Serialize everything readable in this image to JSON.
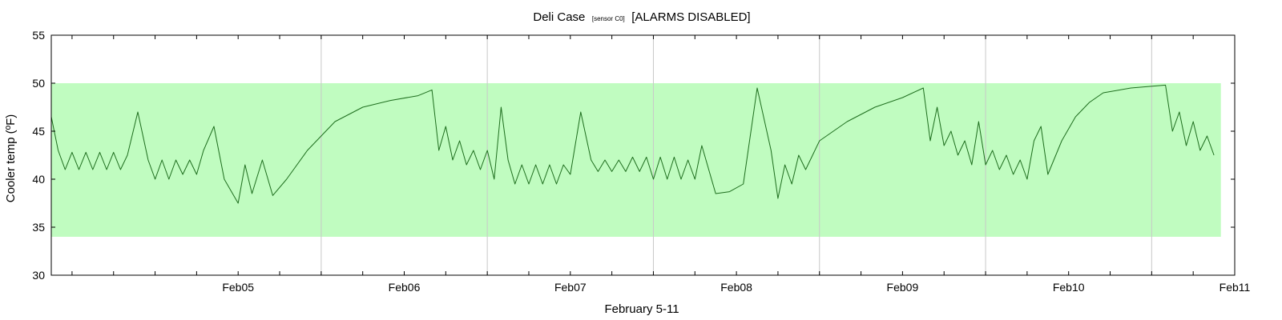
{
  "chart_data": {
    "type": "line",
    "title": "Deli Case",
    "title_sensor": "[sensor C0]",
    "title_status": "[ALARMS DISABLED]",
    "xlabel": "February  5-11",
    "ylabel": "Cooler temp (ºF)",
    "ylim": [
      30,
      55
    ],
    "y_ticks": [
      30,
      35,
      40,
      45,
      50,
      55
    ],
    "xlim": [
      "2024-02-04 09:00",
      "2024-02-11 12:00"
    ],
    "x_tick_labels": [
      {
        "date": "2024-02-05 12:00",
        "label": "Feb05"
      },
      {
        "date": "2024-02-06 12:00",
        "label": "Feb06"
      },
      {
        "date": "2024-02-07 12:00",
        "label": "Feb07"
      },
      {
        "date": "2024-02-08 12:00",
        "label": "Feb08"
      },
      {
        "date": "2024-02-09 12:00",
        "label": "Feb09"
      },
      {
        "date": "2024-02-10 12:00",
        "label": "Feb10"
      },
      {
        "date": "2024-02-11 12:00",
        "label": "Feb11"
      }
    ],
    "day_boundaries": [
      "2024-02-06 00:00",
      "2024-02-07 00:00",
      "2024-02-08 00:00",
      "2024-02-09 00:00",
      "2024-02-10 00:00",
      "2024-02-11 00:00"
    ],
    "acceptable_band": {
      "low": 34,
      "high": 50,
      "x_end": "2024-02-11 10:00",
      "color": "#c0fcc0"
    },
    "grid": "vertical lines at day boundaries",
    "colors": {
      "line": "#1e6e1e",
      "alarm_marker": "#e8298a",
      "grid": "#c8c8c8"
    },
    "series": [
      {
        "color": "#1e6e1e",
        "points": [
          [
            "2024-02-04 09:00",
            46.5
          ],
          [
            "2024-02-04 10:00",
            43
          ],
          [
            "2024-02-04 11:00",
            41
          ],
          [
            "2024-02-04 12:00",
            42.8
          ],
          [
            "2024-02-04 13:00",
            41
          ],
          [
            "2024-02-04 14:00",
            42.8
          ],
          [
            "2024-02-04 15:00",
            41
          ],
          [
            "2024-02-04 16:00",
            42.8
          ],
          [
            "2024-02-04 17:00",
            41
          ],
          [
            "2024-02-04 18:00",
            42.8
          ],
          [
            "2024-02-04 19:00",
            41
          ],
          [
            "2024-02-04 20:00",
            42.5
          ],
          [
            "2024-02-04 21:30",
            47
          ],
          [
            "2024-02-04 23:00",
            42
          ],
          [
            "2024-02-05 00:00",
            40
          ],
          [
            "2024-02-05 01:00",
            42
          ],
          [
            "2024-02-05 02:00",
            40
          ],
          [
            "2024-02-05 03:00",
            42
          ],
          [
            "2024-02-05 04:00",
            40.5
          ],
          [
            "2024-02-05 05:00",
            42
          ],
          [
            "2024-02-05 06:00",
            40.5
          ],
          [
            "2024-02-05 07:00",
            43
          ],
          [
            "2024-02-05 08:30",
            45.5
          ],
          [
            "2024-02-05 10:00",
            40
          ],
          [
            "2024-02-05 12:00",
            37.5
          ],
          [
            "2024-02-05 13:00",
            41.5
          ],
          [
            "2024-02-05 14:00",
            38.5
          ],
          [
            "2024-02-05 15:30",
            42
          ],
          [
            "2024-02-05 17:00",
            38.3
          ],
          [
            "2024-02-05 19:00",
            40
          ],
          [
            "2024-02-05 22:00",
            43
          ],
          [
            "2024-02-06 02:00",
            46
          ],
          [
            "2024-02-06 06:00",
            47.5
          ],
          [
            "2024-02-06 10:00",
            48.2
          ],
          [
            "2024-02-06 14:00",
            48.7
          ],
          [
            "2024-02-06 16:00",
            49.3
          ],
          [
            "2024-02-06 17:00",
            43
          ],
          [
            "2024-02-06 18:00",
            45.5
          ],
          [
            "2024-02-06 19:00",
            42
          ],
          [
            "2024-02-06 20:00",
            44
          ],
          [
            "2024-02-06 21:00",
            41.5
          ],
          [
            "2024-02-06 22:00",
            43
          ],
          [
            "2024-02-06 23:00",
            41
          ],
          [
            "2024-02-07 00:00",
            43
          ],
          [
            "2024-02-07 01:00",
            40
          ],
          [
            "2024-02-07 02:00",
            47.5
          ],
          [
            "2024-02-07 03:00",
            42
          ],
          [
            "2024-02-07 04:00",
            39.5
          ],
          [
            "2024-02-07 05:00",
            41.5
          ],
          [
            "2024-02-07 06:00",
            39.5
          ],
          [
            "2024-02-07 07:00",
            41.5
          ],
          [
            "2024-02-07 08:00",
            39.5
          ],
          [
            "2024-02-07 09:00",
            41.5
          ],
          [
            "2024-02-07 10:00",
            39.5
          ],
          [
            "2024-02-07 11:00",
            41.5
          ],
          [
            "2024-02-07 12:00",
            40.5
          ],
          [
            "2024-02-07 13:30",
            47
          ],
          [
            "2024-02-07 15:00",
            42
          ],
          [
            "2024-02-07 16:00",
            40.8
          ],
          [
            "2024-02-07 17:00",
            42
          ],
          [
            "2024-02-07 18:00",
            40.8
          ],
          [
            "2024-02-07 19:00",
            42
          ],
          [
            "2024-02-07 20:00",
            40.8
          ],
          [
            "2024-02-07 21:00",
            42.3
          ],
          [
            "2024-02-07 22:00",
            40.8
          ],
          [
            "2024-02-07 23:00",
            42.3
          ],
          [
            "2024-02-08 00:00",
            40
          ],
          [
            "2024-02-08 01:00",
            42.3
          ],
          [
            "2024-02-08 02:00",
            40
          ],
          [
            "2024-02-08 03:00",
            42.3
          ],
          [
            "2024-02-08 04:00",
            40
          ],
          [
            "2024-02-08 05:00",
            42
          ],
          [
            "2024-02-08 06:00",
            40
          ],
          [
            "2024-02-08 07:00",
            43.5
          ],
          [
            "2024-02-08 09:00",
            38.5
          ],
          [
            "2024-02-08 11:00",
            38.7
          ],
          [
            "2024-02-08 13:00",
            39.5
          ],
          [
            "2024-02-08 15:00",
            49.5
          ],
          [
            "2024-02-08 17:00",
            43
          ],
          [
            "2024-02-08 18:00",
            38
          ],
          [
            "2024-02-08 19:00",
            41.5
          ],
          [
            "2024-02-08 20:00",
            39.5
          ],
          [
            "2024-02-08 21:00",
            42.5
          ],
          [
            "2024-02-08 22:00",
            41
          ],
          [
            "2024-02-09 00:00",
            44
          ],
          [
            "2024-02-09 04:00",
            46
          ],
          [
            "2024-02-09 08:00",
            47.5
          ],
          [
            "2024-02-09 12:00",
            48.5
          ],
          [
            "2024-02-09 15:00",
            49.5
          ],
          [
            "2024-02-09 16:00",
            44
          ],
          [
            "2024-02-09 17:00",
            47.5
          ],
          [
            "2024-02-09 18:00",
            43.5
          ],
          [
            "2024-02-09 19:00",
            45
          ],
          [
            "2024-02-09 20:00",
            42.5
          ],
          [
            "2024-02-09 21:00",
            44
          ],
          [
            "2024-02-09 22:00",
            41.5
          ],
          [
            "2024-02-09 23:00",
            46
          ],
          [
            "2024-02-10 00:00",
            41.5
          ],
          [
            "2024-02-10 01:00",
            43
          ],
          [
            "2024-02-10 02:00",
            41
          ],
          [
            "2024-02-10 03:00",
            42.5
          ],
          [
            "2024-02-10 04:00",
            40.5
          ],
          [
            "2024-02-10 05:00",
            42
          ],
          [
            "2024-02-10 06:00",
            40
          ],
          [
            "2024-02-10 07:00",
            44
          ],
          [
            "2024-02-10 08:00",
            45.5
          ],
          [
            "2024-02-10 09:00",
            40.5
          ],
          [
            "2024-02-10 11:00",
            44
          ],
          [
            "2024-02-10 13:00",
            46.5
          ],
          [
            "2024-02-10 15:00",
            48
          ],
          [
            "2024-02-10 17:00",
            49
          ],
          [
            "2024-02-10 21:00",
            49.5
          ],
          [
            "2024-02-11 02:00",
            49.8
          ],
          [
            "2024-02-11 03:00",
            45
          ],
          [
            "2024-02-11 04:00",
            47
          ],
          [
            "2024-02-11 05:00",
            43.5
          ],
          [
            "2024-02-11 06:00",
            46
          ],
          [
            "2024-02-11 07:00",
            43
          ],
          [
            "2024-02-11 08:00",
            44.5
          ],
          [
            "2024-02-11 09:00",
            42.5
          ]
        ]
      }
    ]
  }
}
